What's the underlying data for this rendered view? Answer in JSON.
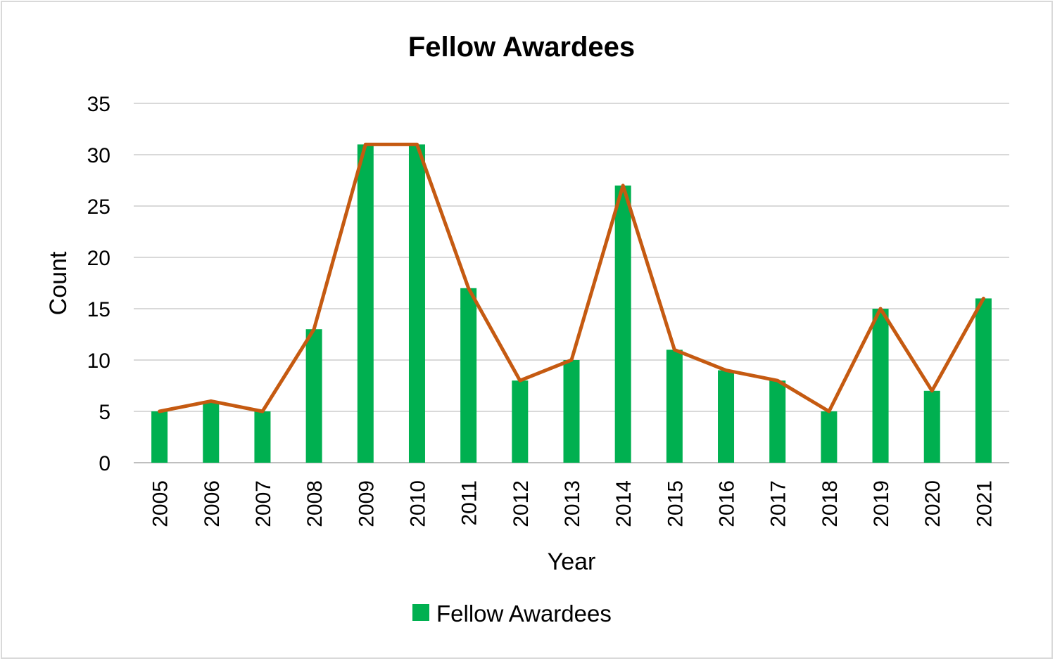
{
  "chart_data": {
    "type": "bar",
    "title": "Fellow Awardees",
    "xlabel": "Year",
    "ylabel": "Count",
    "ylim": [
      0,
      35
    ],
    "yticks": [
      0,
      5,
      10,
      15,
      20,
      25,
      30,
      35
    ],
    "categories": [
      "2005",
      "2006",
      "2007",
      "2008",
      "2009",
      "2010",
      "2011",
      "2012",
      "2013",
      "2014",
      "2015",
      "2016",
      "2017",
      "2018",
      "2019",
      "2020",
      "2021"
    ],
    "series": [
      {
        "name": "Fellow Awardees",
        "type": "bar",
        "color": "#00b050",
        "values": [
          5,
          6,
          5,
          13,
          31,
          31,
          17,
          8,
          10,
          27,
          11,
          9,
          8,
          5,
          15,
          7,
          16
        ]
      },
      {
        "type": "line",
        "color": "#c55a11",
        "values": [
          5,
          6,
          5,
          13,
          31,
          31,
          17,
          8,
          10,
          27,
          11,
          9,
          8,
          5,
          15,
          7,
          16
        ]
      }
    ],
    "grid": true,
    "legend": "bottom"
  }
}
